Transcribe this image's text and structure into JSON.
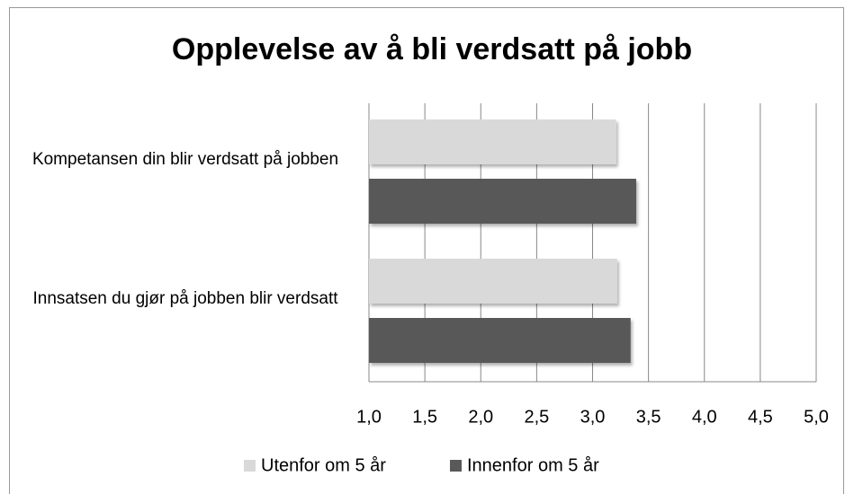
{
  "chart_data": {
    "type": "bar",
    "orientation": "horizontal",
    "title": "Opplevelse av å bli verdsatt på jobb",
    "categories": [
      "Kompetansen din blir verdsatt på jobben",
      "Innsatsen du gjør på jobben blir verdsatt"
    ],
    "series": [
      {
        "name": "Utenfor om 5 år",
        "color": "#d9d9d9",
        "values": [
          3.21,
          3.22
        ]
      },
      {
        "name": "Innenfor om 5 år",
        "color": "#595959",
        "values": [
          3.39,
          3.34
        ]
      }
    ],
    "xlim": [
      1,
      5
    ],
    "xticks": [
      {
        "value": 1,
        "label": "1,0"
      },
      {
        "value": 1.5,
        "label": "1,5"
      },
      {
        "value": 2,
        "label": "2,0"
      },
      {
        "value": 2.5,
        "label": "2,5"
      },
      {
        "value": 3,
        "label": "3,0"
      },
      {
        "value": 3.5,
        "label": "3,5"
      },
      {
        "value": 4,
        "label": "4,0"
      },
      {
        "value": 4.5,
        "label": "4,5"
      },
      {
        "value": 5,
        "label": "5,0"
      }
    ],
    "grid": true,
    "legend": "bottom"
  }
}
